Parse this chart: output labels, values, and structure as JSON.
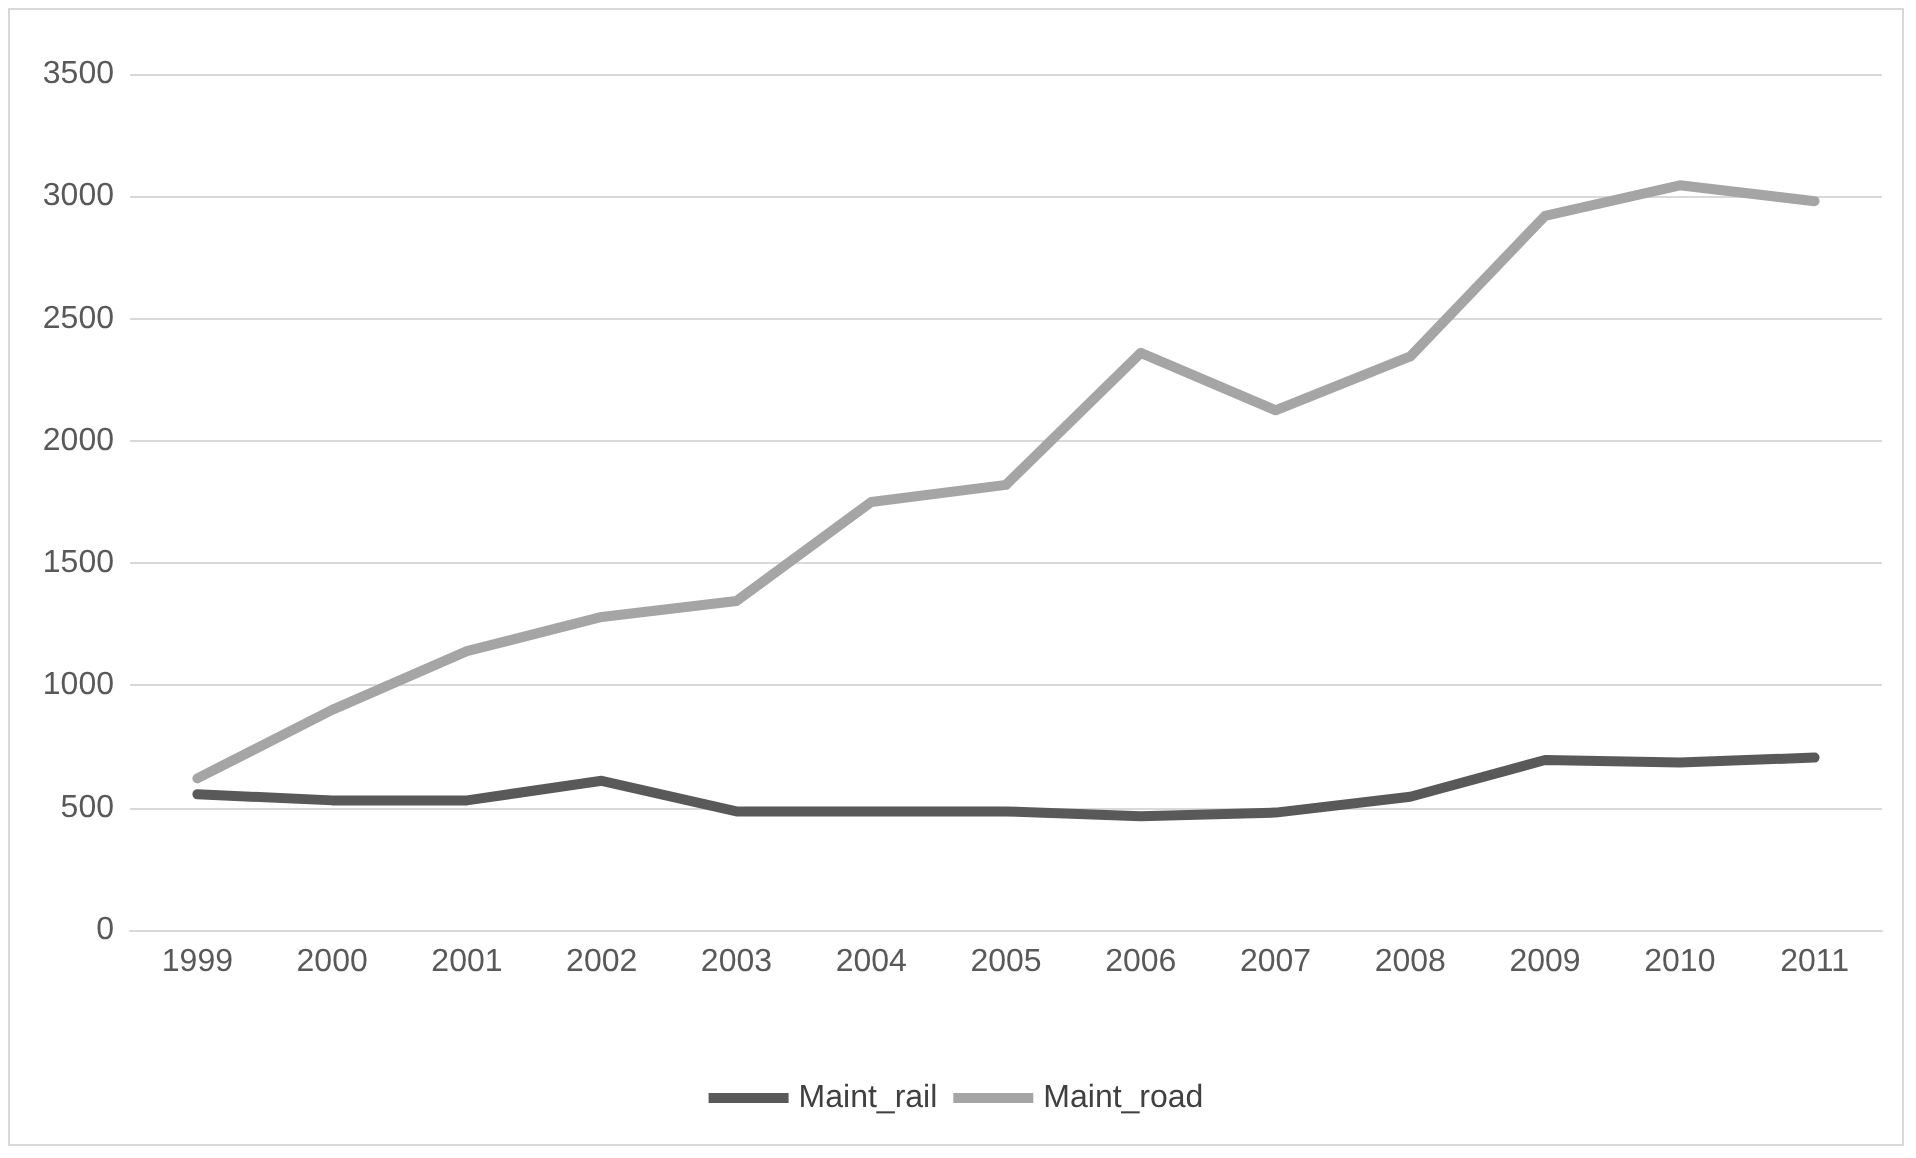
{
  "chart_data": {
    "type": "line",
    "categories": [
      "1999",
      "2000",
      "2001",
      "2002",
      "2003",
      "2004",
      "2005",
      "2006",
      "2007",
      "2008",
      "2009",
      "2010",
      "2011"
    ],
    "series": [
      {
        "name": "Maint_rail",
        "color": "#595959",
        "values": [
          555,
          530,
          530,
          610,
          485,
          485,
          485,
          465,
          480,
          545,
          695,
          685,
          705
        ]
      },
      {
        "name": "Maint_road",
        "color": "#a5a5a5",
        "values": [
          620,
          900,
          1140,
          1280,
          1345,
          1750,
          1820,
          2360,
          2125,
          2345,
          2920,
          3045,
          2980
        ]
      }
    ],
    "ylim": [
      0,
      3500
    ],
    "yticks": [
      0,
      500,
      1000,
      1500,
      2000,
      2500,
      3000,
      3500
    ],
    "grid": "y",
    "legend": "bottom",
    "marker": "none",
    "line_style": "solid"
  }
}
